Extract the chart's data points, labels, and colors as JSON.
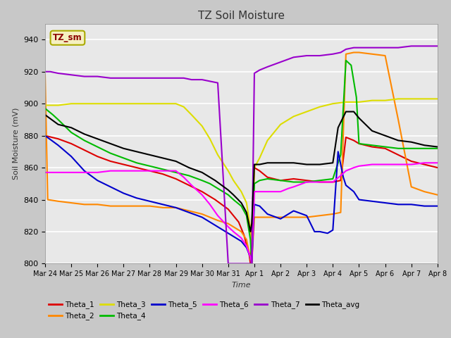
{
  "title": "TZ Soil Moisture",
  "ylabel": "Soil Moisture (mV)",
  "xlabel": "Time",
  "ylim": [
    800,
    950
  ],
  "xlim": [
    0,
    15
  ],
  "x_tick_labels": [
    "Mar 24",
    "Mar 25",
    "Mar 26",
    "Mar 27",
    "Mar 28",
    "Mar 29",
    "Mar 30",
    "Mar 31",
    "Apr 1",
    "Apr 2",
    "Apr 3",
    "Apr 4",
    "Apr 5",
    "Apr 6",
    "Apr 7",
    "Apr 8"
  ],
  "background_color": "#c8c8c8",
  "plot_bg": "#e8e8e8",
  "grid_color": "#ffffff",
  "legend_label": "TZ_sm",
  "legend_label_color": "#8B0000",
  "legend_box_facecolor": "#f5f0c0",
  "legend_box_edgecolor": "#aaaa00",
  "series": {
    "Theta_1": {
      "color": "#dd0000",
      "points": [
        [
          0,
          880
        ],
        [
          0.5,
          878
        ],
        [
          1,
          875
        ],
        [
          1.5,
          871
        ],
        [
          2,
          867
        ],
        [
          2.5,
          864
        ],
        [
          3,
          862
        ],
        [
          3.5,
          860
        ],
        [
          4,
          858
        ],
        [
          4.5,
          856
        ],
        [
          5,
          853
        ],
        [
          5.5,
          849
        ],
        [
          6,
          845
        ],
        [
          6.5,
          840
        ],
        [
          7,
          834
        ],
        [
          7.2,
          830
        ],
        [
          7.4,
          826
        ],
        [
          7.6,
          818
        ],
        [
          7.8,
          806
        ],
        [
          7.85,
          800
        ],
        [
          8.0,
          860
        ],
        [
          8.2,
          858
        ],
        [
          8.5,
          854
        ],
        [
          9,
          852
        ],
        [
          9.5,
          853
        ],
        [
          10,
          852
        ],
        [
          10.5,
          851
        ],
        [
          11,
          851
        ],
        [
          11.3,
          852
        ],
        [
          11.5,
          879
        ],
        [
          11.8,
          877
        ],
        [
          12,
          875
        ],
        [
          12.5,
          873
        ],
        [
          13,
          872
        ],
        [
          13.5,
          868
        ],
        [
          14,
          864
        ],
        [
          14.5,
          862
        ],
        [
          15,
          860
        ]
      ]
    },
    "Theta_2": {
      "color": "#ff8800",
      "points": [
        [
          0,
          918
        ],
        [
          0.1,
          840
        ],
        [
          0.5,
          839
        ],
        [
          1,
          838
        ],
        [
          1.5,
          837
        ],
        [
          2,
          837
        ],
        [
          2.5,
          836
        ],
        [
          3,
          836
        ],
        [
          3.5,
          836
        ],
        [
          4,
          836
        ],
        [
          4.5,
          835
        ],
        [
          5,
          835
        ],
        [
          5.5,
          833
        ],
        [
          6,
          831
        ],
        [
          6.3,
          829
        ],
        [
          6.6,
          827
        ],
        [
          7,
          825
        ],
        [
          7.2,
          823
        ],
        [
          7.5,
          820
        ],
        [
          7.7,
          815
        ],
        [
          7.85,
          803
        ],
        [
          7.9,
          800
        ],
        [
          8.0,
          829
        ],
        [
          8.3,
          829
        ],
        [
          9,
          829
        ],
        [
          10,
          829
        ],
        [
          10.5,
          830
        ],
        [
          11,
          831
        ],
        [
          11.3,
          832
        ],
        [
          11.5,
          931
        ],
        [
          11.8,
          932
        ],
        [
          12,
          932
        ],
        [
          12.5,
          931
        ],
        [
          13,
          930
        ],
        [
          13.5,
          890
        ],
        [
          14,
          848
        ],
        [
          14.5,
          845
        ],
        [
          15,
          843
        ]
      ]
    },
    "Theta_3": {
      "color": "#dddd00",
      "points": [
        [
          0,
          899
        ],
        [
          0.5,
          899
        ],
        [
          1,
          900
        ],
        [
          1.5,
          900
        ],
        [
          2,
          900
        ],
        [
          2.5,
          900
        ],
        [
          3,
          900
        ],
        [
          3.5,
          900
        ],
        [
          4,
          900
        ],
        [
          4.5,
          900
        ],
        [
          5,
          900
        ],
        [
          5.3,
          898
        ],
        [
          5.6,
          893
        ],
        [
          6,
          886
        ],
        [
          6.3,
          878
        ],
        [
          6.6,
          868
        ],
        [
          7,
          858
        ],
        [
          7.2,
          852
        ],
        [
          7.5,
          845
        ],
        [
          7.7,
          838
        ],
        [
          7.85,
          822
        ],
        [
          7.9,
          800
        ],
        [
          8.0,
          860
        ],
        [
          8.2,
          866
        ],
        [
          8.5,
          877
        ],
        [
          9,
          887
        ],
        [
          9.5,
          892
        ],
        [
          10,
          895
        ],
        [
          10.5,
          898
        ],
        [
          11,
          900
        ],
        [
          11.5,
          901
        ],
        [
          12,
          901
        ],
        [
          12.5,
          902
        ],
        [
          13,
          902
        ],
        [
          13.5,
          903
        ],
        [
          14,
          903
        ],
        [
          14.5,
          903
        ],
        [
          15,
          903
        ]
      ]
    },
    "Theta_4": {
      "color": "#00bb00",
      "points": [
        [
          0,
          897
        ],
        [
          0.3,
          893
        ],
        [
          0.5,
          890
        ],
        [
          1,
          882
        ],
        [
          1.5,
          877
        ],
        [
          2,
          873
        ],
        [
          2.5,
          869
        ],
        [
          3,
          866
        ],
        [
          3.5,
          863
        ],
        [
          4,
          861
        ],
        [
          4.5,
          859
        ],
        [
          5,
          857
        ],
        [
          5.5,
          855
        ],
        [
          6,
          852
        ],
        [
          6.3,
          850
        ],
        [
          6.6,
          847
        ],
        [
          7,
          843
        ],
        [
          7.2,
          840
        ],
        [
          7.5,
          836
        ],
        [
          7.7,
          830
        ],
        [
          7.85,
          815
        ],
        [
          7.9,
          800
        ],
        [
          8.0,
          850
        ],
        [
          8.2,
          852
        ],
        [
          8.5,
          853
        ],
        [
          9,
          852
        ],
        [
          9.5,
          851
        ],
        [
          10,
          851
        ],
        [
          10.5,
          852
        ],
        [
          11,
          853
        ],
        [
          11.3,
          868
        ],
        [
          11.5,
          927
        ],
        [
          11.7,
          924
        ],
        [
          11.9,
          904
        ],
        [
          12,
          875
        ],
        [
          12.5,
          874
        ],
        [
          13,
          873
        ],
        [
          13.5,
          872
        ],
        [
          14,
          872
        ],
        [
          14.5,
          872
        ],
        [
          15,
          872
        ]
      ]
    },
    "Theta_5": {
      "color": "#0000cc",
      "points": [
        [
          0,
          880
        ],
        [
          0.5,
          874
        ],
        [
          1,
          867
        ],
        [
          1.5,
          858
        ],
        [
          2,
          852
        ],
        [
          2.5,
          848
        ],
        [
          3,
          844
        ],
        [
          3.5,
          841
        ],
        [
          4,
          839
        ],
        [
          4.5,
          837
        ],
        [
          5,
          835
        ],
        [
          5.5,
          832
        ],
        [
          6,
          829
        ],
        [
          6.3,
          826
        ],
        [
          6.6,
          823
        ],
        [
          7,
          819
        ],
        [
          7.2,
          817
        ],
        [
          7.5,
          814
        ],
        [
          7.7,
          810
        ],
        [
          7.85,
          804
        ],
        [
          7.9,
          800
        ],
        [
          8.0,
          837
        ],
        [
          8.2,
          836
        ],
        [
          8.5,
          831
        ],
        [
          9,
          828
        ],
        [
          9.3,
          831
        ],
        [
          9.5,
          833
        ],
        [
          10,
          830
        ],
        [
          10.3,
          820
        ],
        [
          10.5,
          820
        ],
        [
          10.8,
          819
        ],
        [
          11,
          821
        ],
        [
          11.2,
          870
        ],
        [
          11.4,
          854
        ],
        [
          11.5,
          849
        ],
        [
          11.8,
          845
        ],
        [
          12,
          840
        ],
        [
          12.5,
          839
        ],
        [
          13,
          838
        ],
        [
          13.5,
          837
        ],
        [
          14,
          837
        ],
        [
          14.5,
          836
        ],
        [
          15,
          836
        ]
      ]
    },
    "Theta_6": {
      "color": "#ff00ff",
      "points": [
        [
          0,
          857
        ],
        [
          0.5,
          857
        ],
        [
          1,
          857
        ],
        [
          1.5,
          857
        ],
        [
          2,
          857
        ],
        [
          2.5,
          858
        ],
        [
          3,
          858
        ],
        [
          3.5,
          858
        ],
        [
          4,
          858
        ],
        [
          4.5,
          858
        ],
        [
          5,
          858
        ],
        [
          5.3,
          854
        ],
        [
          5.6,
          849
        ],
        [
          6,
          843
        ],
        [
          6.3,
          837
        ],
        [
          6.6,
          830
        ],
        [
          7,
          823
        ],
        [
          7.2,
          820
        ],
        [
          7.5,
          816
        ],
        [
          7.7,
          811
        ],
        [
          7.85,
          804
        ],
        [
          7.9,
          800
        ],
        [
          8.0,
          845
        ],
        [
          8.2,
          845
        ],
        [
          8.5,
          845
        ],
        [
          9,
          845
        ],
        [
          9.3,
          847
        ],
        [
          9.5,
          848
        ],
        [
          10,
          851
        ],
        [
          10.5,
          851
        ],
        [
          11,
          851
        ],
        [
          11.3,
          855
        ],
        [
          11.5,
          858
        ],
        [
          11.8,
          860
        ],
        [
          12,
          861
        ],
        [
          12.5,
          862
        ],
        [
          13,
          862
        ],
        [
          13.5,
          862
        ],
        [
          14,
          862
        ],
        [
          14.5,
          863
        ],
        [
          15,
          863
        ]
      ]
    },
    "Theta_7": {
      "color": "#9900cc",
      "points": [
        [
          0,
          920
        ],
        [
          0.2,
          920
        ],
        [
          0.5,
          919
        ],
        [
          1,
          918
        ],
        [
          1.5,
          917
        ],
        [
          2,
          917
        ],
        [
          2.5,
          916
        ],
        [
          3,
          916
        ],
        [
          3.5,
          916
        ],
        [
          4,
          916
        ],
        [
          4.5,
          916
        ],
        [
          5,
          916
        ],
        [
          5.3,
          916
        ],
        [
          5.6,
          915
        ],
        [
          6,
          915
        ],
        [
          6.3,
          914
        ],
        [
          6.6,
          913
        ],
        [
          7,
          800
        ],
        [
          7.1,
          800
        ],
        [
          7.85,
          800
        ],
        [
          7.9,
          800
        ],
        [
          8.0,
          919
        ],
        [
          8.2,
          921
        ],
        [
          8.5,
          923
        ],
        [
          9,
          926
        ],
        [
          9.5,
          929
        ],
        [
          10,
          930
        ],
        [
          10.5,
          930
        ],
        [
          11,
          931
        ],
        [
          11.3,
          932
        ],
        [
          11.5,
          934
        ],
        [
          11.8,
          935
        ],
        [
          12,
          935
        ],
        [
          12.5,
          935
        ],
        [
          13,
          935
        ],
        [
          13.5,
          935
        ],
        [
          14,
          936
        ],
        [
          14.5,
          936
        ],
        [
          15,
          936
        ]
      ]
    },
    "Theta_avg": {
      "color": "#000000",
      "points": [
        [
          0,
          893
        ],
        [
          0.5,
          887
        ],
        [
          1,
          885
        ],
        [
          1.5,
          881
        ],
        [
          2,
          878
        ],
        [
          2.5,
          875
        ],
        [
          3,
          872
        ],
        [
          3.5,
          870
        ],
        [
          4,
          868
        ],
        [
          4.5,
          866
        ],
        [
          5,
          864
        ],
        [
          5.5,
          860
        ],
        [
          6,
          857
        ],
        [
          6.5,
          852
        ],
        [
          7,
          846
        ],
        [
          7.2,
          843
        ],
        [
          7.5,
          838
        ],
        [
          7.7,
          832
        ],
        [
          7.85,
          820
        ],
        [
          7.9,
          825
        ],
        [
          8.0,
          862
        ],
        [
          8.2,
          862
        ],
        [
          8.5,
          863
        ],
        [
          9,
          863
        ],
        [
          9.5,
          863
        ],
        [
          10,
          862
        ],
        [
          10.5,
          862
        ],
        [
          11,
          863
        ],
        [
          11.2,
          885
        ],
        [
          11.5,
          895
        ],
        [
          11.8,
          895
        ],
        [
          12,
          891
        ],
        [
          12.5,
          883
        ],
        [
          13,
          880
        ],
        [
          13.5,
          877
        ],
        [
          14,
          876
        ],
        [
          14.5,
          874
        ],
        [
          15,
          873
        ]
      ]
    }
  },
  "legend_order": [
    "Theta_1",
    "Theta_2",
    "Theta_3",
    "Theta_4",
    "Theta_5",
    "Theta_6",
    "Theta_7",
    "Theta_avg"
  ]
}
